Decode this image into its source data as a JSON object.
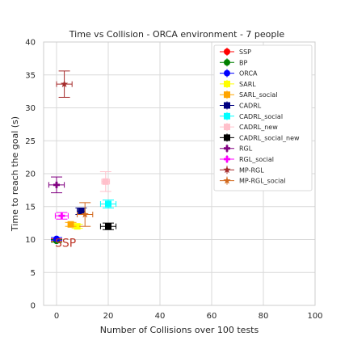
{
  "chart_data": {
    "type": "scatter",
    "title": "Time vs Collision - ORCA environment - 7 people",
    "xlabel": "Number of Collisions over 100 tests",
    "ylabel": "Time to reach the goal (s)",
    "xlim": [
      -5,
      100
    ],
    "ylim": [
      0,
      40
    ],
    "xticks": [
      0,
      20,
      40,
      60,
      80,
      100
    ],
    "yticks": [
      0,
      5,
      10,
      15,
      20,
      25,
      30,
      35,
      40
    ],
    "grid": true,
    "legend_position": "top-right",
    "annotation": {
      "text": "SSP",
      "x": 0,
      "y": 10,
      "color": "#c0392b"
    },
    "series": [
      {
        "name": "SSP",
        "x": 0,
        "y": 9.9,
        "xerr": 0,
        "yerr": 0.2,
        "marker": "circle",
        "color": "#ff0000"
      },
      {
        "name": "BP",
        "x": 0,
        "y": 9.8,
        "xerr": 0,
        "yerr": 0.2,
        "marker": "circle",
        "color": "#008000"
      },
      {
        "name": "ORCA",
        "x": 0,
        "y": 10.1,
        "xerr": 0.5,
        "yerr": 0.2,
        "marker": "circle",
        "color": "#0000ff"
      },
      {
        "name": "SARL",
        "x": 8,
        "y": 12.0,
        "xerr": 0.8,
        "yerr": 0.3,
        "marker": "square",
        "color": "#ffff00"
      },
      {
        "name": "SARL_social",
        "x": 5.5,
        "y": 12.3,
        "xerr": 0.8,
        "yerr": 0.3,
        "marker": "square",
        "color": "#ffa500"
      },
      {
        "name": "CADRL",
        "x": 9.5,
        "y": 14.3,
        "xerr": 1.5,
        "yerr": 0.5,
        "marker": "square",
        "color": "#000080"
      },
      {
        "name": "CADRL_social",
        "x": 20,
        "y": 15.4,
        "xerr": 3.0,
        "yerr": 0.6,
        "marker": "square",
        "color": "#00ffff"
      },
      {
        "name": "CADRL_new",
        "x": 19,
        "y": 18.8,
        "xerr": 1.5,
        "yerr": 1.5,
        "marker": "square",
        "color": "#ffc0cb"
      },
      {
        "name": "CADRL_social_new",
        "x": 20,
        "y": 12.0,
        "xerr": 3.0,
        "yerr": 0.5,
        "marker": "square",
        "color": "#000000"
      },
      {
        "name": "RGL",
        "x": 0,
        "y": 18.3,
        "xerr": 3.0,
        "yerr": 1.2,
        "marker": "plus",
        "color": "#800080"
      },
      {
        "name": "RGL_social",
        "x": 2,
        "y": 13.6,
        "xerr": 2.5,
        "yerr": 0.5,
        "marker": "plus",
        "color": "#ff00ff"
      },
      {
        "name": "MP-RGL",
        "x": 3,
        "y": 33.6,
        "xerr": 3.0,
        "yerr": 2.0,
        "marker": "star",
        "color": "#a52a2a"
      },
      {
        "name": "MP-RGL_social",
        "x": 11,
        "y": 13.8,
        "xerr": 3.0,
        "yerr": 1.8,
        "marker": "star",
        "color": "#d2691e"
      }
    ]
  }
}
